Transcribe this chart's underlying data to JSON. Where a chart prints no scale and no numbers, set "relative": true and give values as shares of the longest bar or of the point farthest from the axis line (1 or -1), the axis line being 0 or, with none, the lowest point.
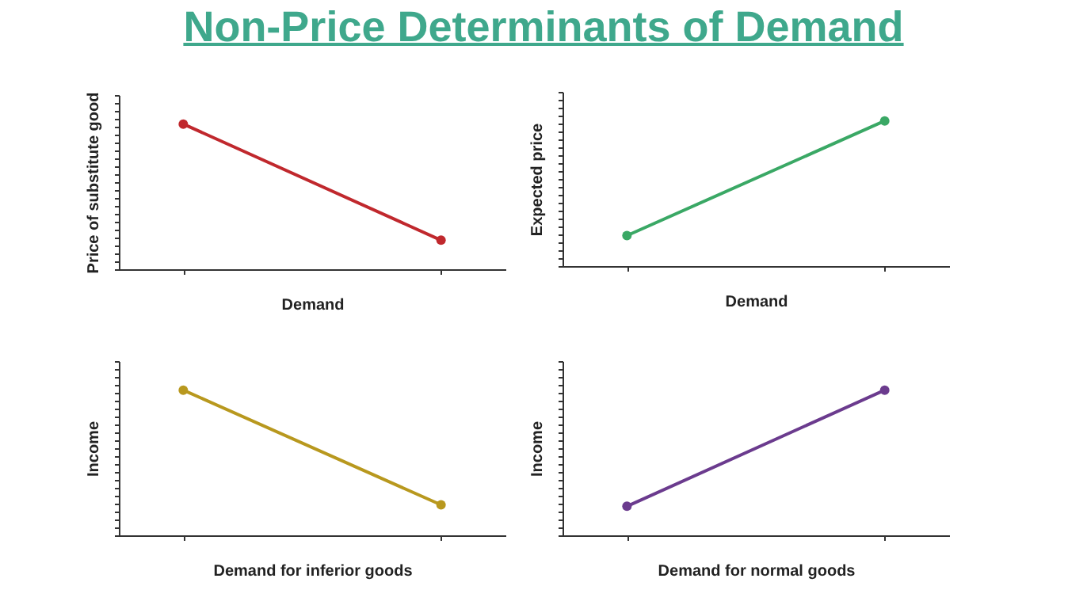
{
  "chart_data": [
    {
      "type": "line",
      "title": "Non-Price Determinants of Demand",
      "categories": [
        null,
        null
      ],
      "relative": true,
      "marker": "circle",
      "line_style": "solid",
      "xlabel": "Demand",
      "ylabel": "Price of substitute good",
      "series": [
        {
          "color": "#c0282d",
          "values": [
            1,
            0.2
          ]
        }
      ]
    },
    {
      "type": "line",
      "categories": [
        null,
        null
      ],
      "relative": true,
      "marker": "circle",
      "line_style": "solid",
      "xlabel": "Demand",
      "ylabel": "Expected price",
      "series": [
        {
          "color": "#3aa865",
          "values": [
            0.21,
            1
          ]
        }
      ]
    },
    {
      "type": "line",
      "categories": [
        null,
        null
      ],
      "relative": true,
      "marker": "circle",
      "line_style": "solid",
      "xlabel": "Demand for inferior goods",
      "ylabel": "Income",
      "series": [
        {
          "color": "#b8981e",
          "values": [
            1,
            0.21
          ]
        }
      ]
    },
    {
      "type": "line",
      "categories": [
        null,
        null
      ],
      "relative": true,
      "marker": "circle",
      "line_style": "solid",
      "xlabel": "Demand for normal goods",
      "ylabel": "Income",
      "series": [
        {
          "color": "#6b3b8e",
          "values": [
            0.2,
            1
          ]
        }
      ]
    }
  ]
}
